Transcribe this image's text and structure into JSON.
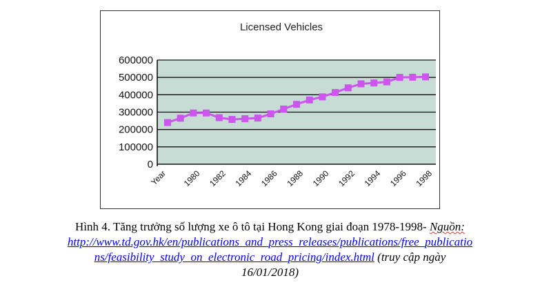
{
  "chart_data": {
    "type": "line",
    "title": "Licensed Vehicles",
    "xlabel": "",
    "ylabel": "",
    "x_axis_first_label": "Year",
    "x": [
      1978,
      1979,
      1980,
      1981,
      1982,
      1983,
      1984,
      1985,
      1986,
      1987,
      1988,
      1989,
      1990,
      1991,
      1992,
      1993,
      1994,
      1995,
      1996,
      1997,
      1998
    ],
    "x_tick_labels": [
      "1980",
      "1982",
      "1984",
      "1986",
      "1988",
      "1990",
      "1992",
      "1994",
      "1996",
      "1998"
    ],
    "y_tick_labels": [
      "600000",
      "500000",
      "400000",
      "300000",
      "200000",
      "100000",
      "0"
    ],
    "series": [
      {
        "values": [
          240000,
          265000,
          295000,
          295000,
          268000,
          258000,
          262000,
          266000,
          290000,
          318000,
          345000,
          370000,
          388000,
          413000,
          440000,
          463000,
          468000,
          474000,
          500000,
          501000,
          503000
        ],
        "color": "#cc55ee",
        "marker": "square"
      }
    ],
    "ylim": [
      0,
      600000
    ],
    "grid": true,
    "legend": "none",
    "plot_background": "#c6dcd5"
  },
  "caption": {
    "main": "Hình 4. Tăng trưởng số lượng xe ô tô tại Hong Kong giai đoạn 1978-1998- ",
    "source_label": "Nguồn:",
    "url_line1": "http://www.td.gov.hk/en/publications_and_press_releases/publications/free_publicatio",
    "url_line2": "ns/feasibility_study_on_electronic_road_pricing/index.html",
    "access_note_line2": " (truy cập ngày",
    "access_date": "16/01/2018)"
  }
}
